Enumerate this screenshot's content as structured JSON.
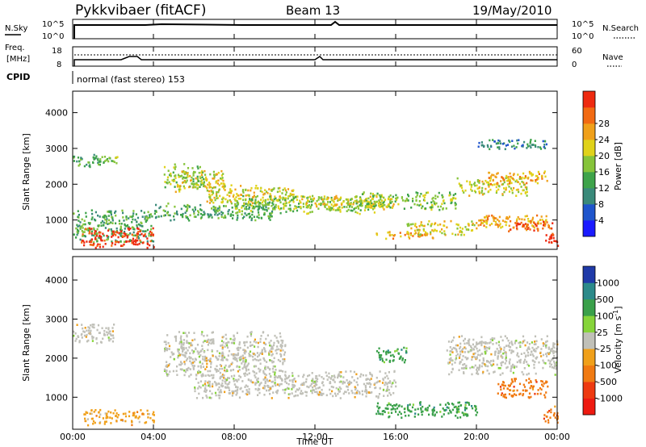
{
  "header": {
    "station": "Pykkvibaer (fitACF)",
    "beam": "Beam 13",
    "date": "19/May/2010"
  },
  "strip_panels": {
    "nsky": {
      "label": "N.Sky",
      "ticks": [
        "10^5",
        "10^0"
      ]
    },
    "nsearch": {
      "label": "N.Search",
      "ticks": [
        "10^5",
        "10^0"
      ]
    },
    "freq": {
      "label_1": "Freq.",
      "label_2": "[MHz]",
      "ticks": [
        "18",
        "8"
      ]
    },
    "nave": {
      "label": "Nave",
      "ticks": [
        "60",
        "0"
      ]
    },
    "cpid": {
      "label": "CPID",
      "text": "normal (fast stereo) 153"
    }
  },
  "chart_data": [
    {
      "type": "heatmap",
      "name": "power",
      "ylabel": "Slant Range [km]",
      "xlabel": "Time UT",
      "x_ticks": [
        "00:00",
        "04:00",
        "08:00",
        "12:00",
        "16:00",
        "20:00",
        "00:00"
      ],
      "y_ticks": [
        "1000",
        "2000",
        "3000",
        "4000"
      ],
      "ylim": [
        180,
        4600
      ],
      "colorbar": {
        "label": "Power [dB]",
        "ticks": [
          "4",
          "8",
          "12",
          "16",
          "20",
          "24",
          "28"
        ],
        "colors": [
          "#1a1aff",
          "#1f55cc",
          "#3a8a7a",
          "#3ea34a",
          "#86c43a",
          "#e0d21a",
          "#f0a01a",
          "#f26a12",
          "#ee2a10"
        ]
      },
      "echo_bands": [
        {
          "t": [
            0.0,
            1.5
          ],
          "r": [
            2500,
            2900
          ],
          "level": 3
        },
        {
          "t": [
            1.2,
            2.2
          ],
          "r": [
            2600,
            2850
          ],
          "level": 4
        },
        {
          "t": [
            0.0,
            4.0
          ],
          "r": [
            400,
            1300
          ],
          "level": 3
        },
        {
          "t": [
            0.4,
            4.0
          ],
          "r": [
            250,
            800
          ],
          "level": 8
        },
        {
          "t": [
            4.5,
            6.5
          ],
          "r": [
            1900,
            2600
          ],
          "level": 4
        },
        {
          "t": [
            5.0,
            7.5
          ],
          "r": [
            1800,
            2400
          ],
          "level": 5
        },
        {
          "t": [
            4.0,
            10.0
          ],
          "r": [
            1000,
            1500
          ],
          "level": 3
        },
        {
          "t": [
            6.5,
            11.0
          ],
          "r": [
            1500,
            2000
          ],
          "level": 5
        },
        {
          "t": [
            8.0,
            15.0
          ],
          "r": [
            1200,
            1700
          ],
          "level": 4
        },
        {
          "t": [
            11.0,
            16.0
          ],
          "r": [
            1300,
            1700
          ],
          "level": 5
        },
        {
          "t": [
            14.0,
            19.0
          ],
          "r": [
            1300,
            1800
          ],
          "level": 4
        },
        {
          "t": [
            15.0,
            18.0
          ],
          "r": [
            500,
            700
          ],
          "level": 6
        },
        {
          "t": [
            16.5,
            20.0
          ],
          "r": [
            600,
            1000
          ],
          "level": 5
        },
        {
          "t": [
            19.0,
            22.5
          ],
          "r": [
            1700,
            2200
          ],
          "level": 5
        },
        {
          "t": [
            20.5,
            23.5
          ],
          "r": [
            2000,
            2400
          ],
          "level": 6
        },
        {
          "t": [
            20.0,
            23.5
          ],
          "r": [
            800,
            1200
          ],
          "level": 6
        },
        {
          "t": [
            21.5,
            23.8
          ],
          "r": [
            700,
            1000
          ],
          "level": 7
        },
        {
          "t": [
            23.4,
            24.0
          ],
          "r": [
            300,
            700
          ],
          "level": 8
        },
        {
          "t": [
            20.0,
            23.5
          ],
          "r": [
            3000,
            3300
          ],
          "level": 2
        }
      ]
    },
    {
      "type": "heatmap",
      "name": "velocity",
      "ylabel": "Slant Range [km]",
      "xlabel": "Time UT",
      "x_ticks": [
        "00:00",
        "04:00",
        "08:00",
        "12:00",
        "16:00",
        "20:00",
        "00:00"
      ],
      "y_ticks": [
        "1000",
        "2000",
        "3000",
        "4000"
      ],
      "ylim": [
        180,
        4600
      ],
      "colorbar": {
        "label_1": "Velocity [m s",
        "label_exp": "-1",
        "label_2": "]",
        "ticks": [
          "1000",
          "500",
          "100",
          "25",
          "-25",
          "-100",
          "-500",
          "-1000"
        ],
        "colors": [
          "#1f3aa8",
          "#2c8a8a",
          "#3aa04a",
          "#86d43a",
          "#c0c0b8",
          "#f0a01a",
          "#f07a12",
          "#ee3a10",
          "#ee1a10"
        ]
      },
      "echo_bands": [
        {
          "t": [
            0.0,
            2.0
          ],
          "r": [
            2400,
            2900
          ],
          "level": 4
        },
        {
          "t": [
            0.5,
            4.0
          ],
          "r": [
            300,
            700
          ],
          "level": 5
        },
        {
          "t": [
            4.5,
            10.5
          ],
          "r": [
            1500,
            2700
          ],
          "level": 4
        },
        {
          "t": [
            6.0,
            16.0
          ],
          "r": [
            1000,
            1700
          ],
          "level": 4
        },
        {
          "t": [
            15.0,
            16.5
          ],
          "r": [
            1900,
            2300
          ],
          "level": 2
        },
        {
          "t": [
            15.0,
            20.0
          ],
          "r": [
            500,
            900
          ],
          "level": 2
        },
        {
          "t": [
            18.5,
            24.0
          ],
          "r": [
            1600,
            2600
          ],
          "level": 4
        },
        {
          "t": [
            21.0,
            23.5
          ],
          "r": [
            1000,
            1500
          ],
          "level": 6
        },
        {
          "t": [
            23.3,
            24.0
          ],
          "r": [
            300,
            800
          ],
          "level": 6
        }
      ]
    }
  ]
}
